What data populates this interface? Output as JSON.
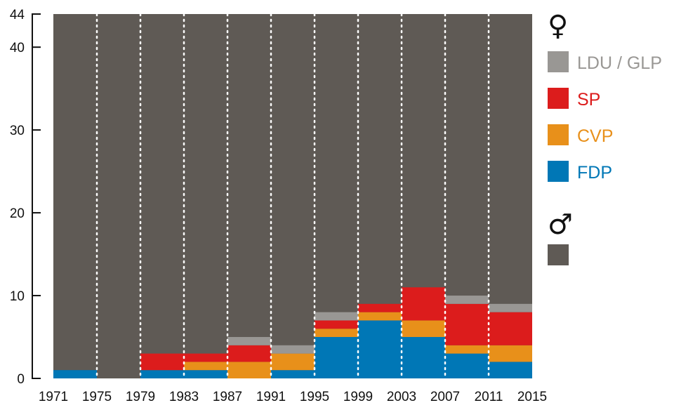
{
  "chart_data": {
    "type": "bar",
    "stacked": true,
    "title": "",
    "xlabel": "",
    "ylabel": "",
    "ylim": [
      0,
      44
    ],
    "yticks": [
      0,
      10,
      20,
      30,
      40,
      44
    ],
    "x_ticks": [
      "1971",
      "1975",
      "1979",
      "1983",
      "1987",
      "1991",
      "1995",
      "1999",
      "2003",
      "2007",
      "2011",
      "2015"
    ],
    "categories": [
      "1971",
      "1975",
      "1979",
      "1983",
      "1987",
      "1991",
      "1995",
      "1999",
      "2003",
      "2007",
      "2011"
    ],
    "total_seats": 44,
    "series": [
      {
        "name": "FDP",
        "color": "#0077b6",
        "values": [
          1,
          0,
          1,
          1,
          0,
          1,
          5,
          7,
          5,
          3,
          2
        ]
      },
      {
        "name": "CVP",
        "color": "#e8901a",
        "values": [
          0,
          0,
          0,
          1,
          2,
          2,
          1,
          1,
          2,
          1,
          2
        ]
      },
      {
        "name": "SP",
        "color": "#dc1c1c",
        "values": [
          0,
          0,
          2,
          1,
          2,
          0,
          1,
          1,
          4,
          5,
          4
        ]
      },
      {
        "name": "LDU / GLP",
        "color": "#999794",
        "values": [
          0,
          0,
          0,
          0,
          1,
          1,
          1,
          0,
          0,
          1,
          1
        ]
      }
    ],
    "men_color": "#5f5a55",
    "grid": false,
    "legend_position": "right",
    "legend": {
      "female_symbol": "♀",
      "male_symbol": "♂",
      "items": [
        {
          "label": "LDU / GLP",
          "color": "#999794"
        },
        {
          "label": "SP",
          "color": "#dc1c1c"
        },
        {
          "label": "CVP",
          "color": "#e8901a"
        },
        {
          "label": "FDP",
          "color": "#0077b6"
        }
      ],
      "male_item": {
        "label": "",
        "color": "#5f5a55"
      }
    }
  }
}
